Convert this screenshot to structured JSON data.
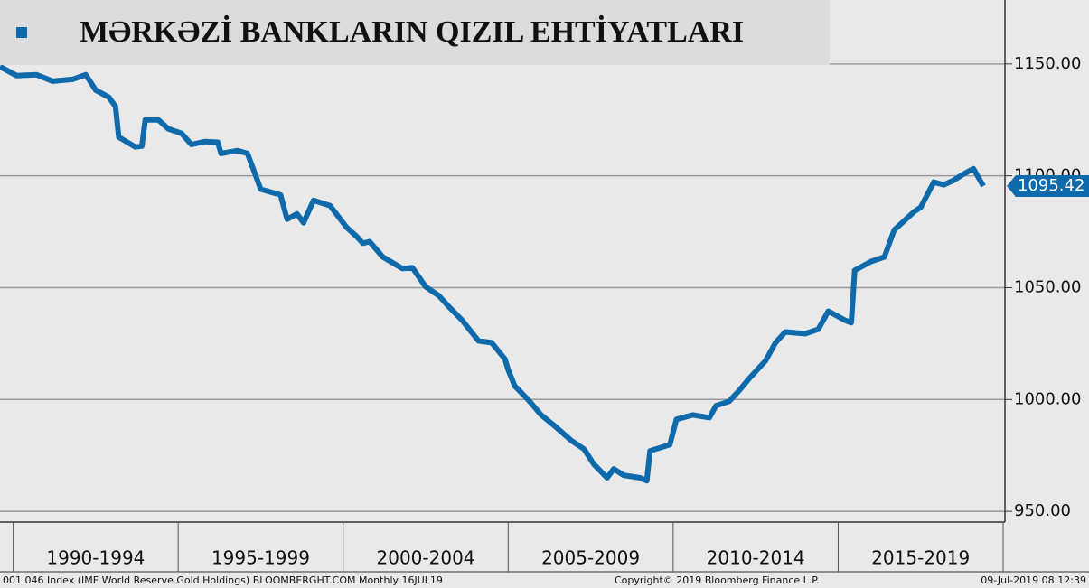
{
  "chart_data": {
    "type": "line",
    "series": [
      {
        "name": "MƏRKƏZİ BANKLARIN QIZIL EHTİYATLARI",
        "color": "#0f6aab",
        "x": [
          1989.6,
          1990.1,
          1990.7,
          1991.2,
          1991.8,
          1992.2,
          1992.5,
          1992.9,
          1993.1,
          1993.2,
          1993.7,
          1993.9,
          1994.0,
          1994.4,
          1994.7,
          1995.1,
          1995.4,
          1995.8,
          1996.2,
          1996.3,
          1996.8,
          1997.1,
          1997.3,
          1997.5,
          1998.1,
          1998.3,
          1998.6,
          1998.8,
          1999.1,
          1999.6,
          2000.1,
          2000.4,
          2000.6,
          2000.8,
          2001.2,
          2001.8,
          2002.1,
          2002.5,
          2002.9,
          2003.2,
          2003.6,
          2004.1,
          2004.5,
          2004.9,
          2005.0,
          2005.2,
          2005.6,
          2006.0,
          2006.4,
          2006.9,
          2007.3,
          2007.6,
          2008.0,
          2008.2,
          2008.5,
          2009.0,
          2009.2,
          2009.3,
          2009.9,
          2010.1,
          2010.6,
          2011.1,
          2011.3,
          2011.7,
          2012.0,
          2012.3,
          2012.8,
          2013.1,
          2013.4,
          2014.0,
          2014.4,
          2014.7,
          2015.2,
          2015.4,
          2015.5,
          2016.0,
          2016.4,
          2016.7,
          2017.3,
          2017.5,
          2017.9,
          2018.2,
          2018.5,
          2018.8,
          2019.1,
          2019.4
        ],
        "values": [
          1148.8,
          1144.8,
          1145.2,
          1142.3,
          1143.1,
          1145.2,
          1138.3,
          1135.1,
          1131,
          1117.3,
          1112.9,
          1113.3,
          1125,
          1125,
          1121,
          1119,
          1114,
          1115.3,
          1115,
          1110,
          1111.3,
          1110,
          1102,
          1094,
          1091.5,
          1080.6,
          1083,
          1079,
          1089,
          1086.7,
          1077,
          1073,
          1069.8,
          1070.6,
          1063.7,
          1058.5,
          1058.9,
          1050.4,
          1046.4,
          1041.5,
          1035.5,
          1026.2,
          1025.4,
          1018.1,
          1013.3,
          1006,
          1000,
          993.1,
          988.3,
          981.8,
          977.8,
          971,
          965,
          969,
          966.1,
          965,
          963.7,
          977,
          979.8,
          991.1,
          993.1,
          991.9,
          997.2,
          999.2,
          1004,
          1009.3,
          1017.3,
          1025.4,
          1030.2,
          1029.4,
          1031.4,
          1039.5,
          1035.5,
          1034.3,
          1057.7,
          1061.7,
          1063.7,
          1075.8,
          1083.9,
          1085.9,
          1097.2,
          1096,
          1098,
          1100.8,
          1103.2,
          1095.42
        ]
      }
    ],
    "xlim": [
      1989.6,
      2020
    ],
    "xticks": [
      1990,
      1995,
      2000,
      2005,
      2010,
      2015,
      2020
    ],
    "periods": [
      "1990-1994",
      "1995-1999",
      "2000-2004",
      "2005-2009",
      "2010-2014",
      "2015-2019"
    ],
    "ylim": [
      945.2,
      1178.6
    ],
    "yticks": [
      {
        "value": 950,
        "label": "950.00"
      },
      {
        "value": 1000,
        "label": "1000.00"
      },
      {
        "value": 1050,
        "label": "1050.00"
      },
      {
        "value": 1100,
        "label": "1100.00"
      },
      {
        "value": 1150,
        "label": "1150.00"
      }
    ],
    "grid": true,
    "source": "001.046 Index (IMF World Reserve Gold Holdings) BLOOMBERGHT.COM  Monthly 16JUL19",
    "copyright": "Copyright© 2019 Bloomberg Finance L.P.",
    "timestamp": "09-Jul-2019 08:12:39"
  }
}
